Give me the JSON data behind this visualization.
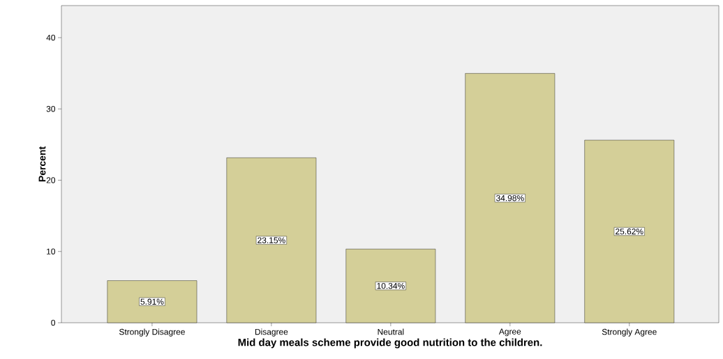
{
  "chart_data": {
    "type": "bar",
    "xlabel": "Mid day meals scheme provide good nutrition to the children.",
    "ylabel": "Percent",
    "categories": [
      "Strongly Disagree",
      "Disagree",
      "Neutral",
      "Agree",
      "Strongly Agree"
    ],
    "values": [
      5.91,
      23.15,
      10.34,
      34.98,
      25.62
    ],
    "value_labels": [
      "5.91%",
      "23.15%",
      "10.34%",
      "34.98%",
      "25.62%"
    ],
    "color": "#d4cf98",
    "ylim": [
      0,
      44.5
    ],
    "yticks": [
      0,
      10,
      20,
      30,
      40
    ],
    "grid": false
  }
}
